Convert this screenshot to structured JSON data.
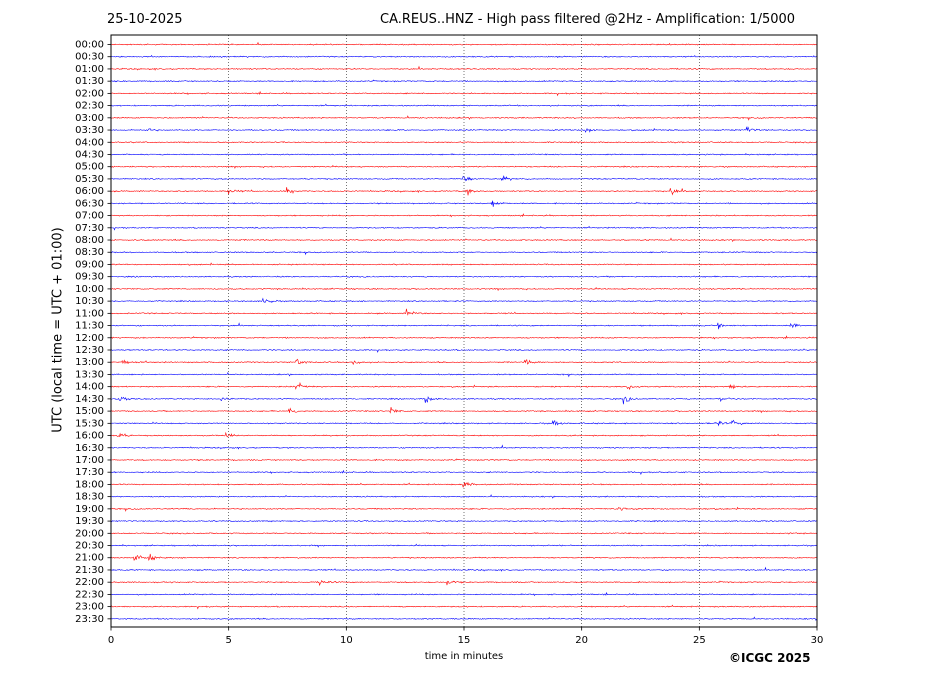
{
  "header": {
    "date": "25-10-2025",
    "title": "CA.REUS..HNZ - High pass filtered @2Hz - Amplification: 1/5000"
  },
  "footer": {
    "copyright": "©ICGC 2025"
  },
  "colors": {
    "trace_red": "#ff0000",
    "trace_blue": "#0000ff",
    "grid": "#1a1a1a",
    "axes": "#000000"
  },
  "chart_data": {
    "type": "line",
    "title": "CA.REUS..HNZ - High pass filtered @2Hz - Amplification: 1/5000",
    "xlabel": "time in minutes",
    "ylabel": "UTC (local time = UTC + 01:00)",
    "xlim": [
      0,
      30
    ],
    "x_ticks": [
      0,
      5,
      10,
      15,
      20,
      25,
      30
    ],
    "grid": "vertical dotted at x ticks",
    "trace_colors_alternate": [
      "red",
      "blue"
    ],
    "rows": [
      "00:00",
      "00:30",
      "01:00",
      "01:30",
      "02:00",
      "02:30",
      "03:00",
      "03:30",
      "04:00",
      "04:30",
      "05:00",
      "05:30",
      "06:00",
      "06:30",
      "07:00",
      "07:30",
      "08:00",
      "08:30",
      "09:00",
      "09:30",
      "10:00",
      "10:30",
      "11:00",
      "11:30",
      "12:00",
      "12:30",
      "13:00",
      "13:30",
      "14:00",
      "14:30",
      "15:00",
      "15:30",
      "16:00",
      "16:30",
      "17:00",
      "17:30",
      "18:00",
      "18:30",
      "19:00",
      "19:30",
      "20:00",
      "20:30",
      "21:00",
      "21:30",
      "22:00",
      "22:30",
      "23:00",
      "23:30"
    ],
    "events": [
      {
        "row": "03:30",
        "x": 1.4
      },
      {
        "row": "03:30",
        "x": 20.2
      },
      {
        "row": "03:30",
        "x": 27.0
      },
      {
        "row": "05:30",
        "x": 15.0
      },
      {
        "row": "05:30",
        "x": 16.6
      },
      {
        "row": "06:00",
        "x": 5.0
      },
      {
        "row": "06:00",
        "x": 7.5
      },
      {
        "row": "06:00",
        "x": 15.1
      },
      {
        "row": "06:00",
        "x": 23.8
      },
      {
        "row": "06:30",
        "x": 16.2
      },
      {
        "row": "10:30",
        "x": 6.5
      },
      {
        "row": "11:00",
        "x": 12.6
      },
      {
        "row": "11:30",
        "x": 25.8
      },
      {
        "row": "11:30",
        "x": 28.9
      },
      {
        "row": "13:00",
        "x": 0.5
      },
      {
        "row": "13:00",
        "x": 7.9
      },
      {
        "row": "13:00",
        "x": 10.3
      },
      {
        "row": "13:00",
        "x": 17.6
      },
      {
        "row": "14:00",
        "x": 7.9
      },
      {
        "row": "14:00",
        "x": 22.0
      },
      {
        "row": "14:00",
        "x": 26.3
      },
      {
        "row": "14:30",
        "x": 0.4
      },
      {
        "row": "14:30",
        "x": 4.7
      },
      {
        "row": "14:30",
        "x": 13.4
      },
      {
        "row": "14:30",
        "x": 21.8
      },
      {
        "row": "14:30",
        "x": 25.9
      },
      {
        "row": "15:00",
        "x": 7.6
      },
      {
        "row": "15:00",
        "x": 11.9
      },
      {
        "row": "15:30",
        "x": 18.8
      },
      {
        "row": "15:30",
        "x": 25.7
      },
      {
        "row": "15:30",
        "x": 26.4
      },
      {
        "row": "16:00",
        "x": 0.3
      },
      {
        "row": "16:00",
        "x": 4.9
      },
      {
        "row": "18:00",
        "x": 15.0
      },
      {
        "row": "19:00",
        "x": 21.6
      },
      {
        "row": "21:00",
        "x": 1.0
      },
      {
        "row": "21:00",
        "x": 1.6
      },
      {
        "row": "22:00",
        "x": 8.9
      },
      {
        "row": "22:00",
        "x": 14.3
      }
    ]
  }
}
